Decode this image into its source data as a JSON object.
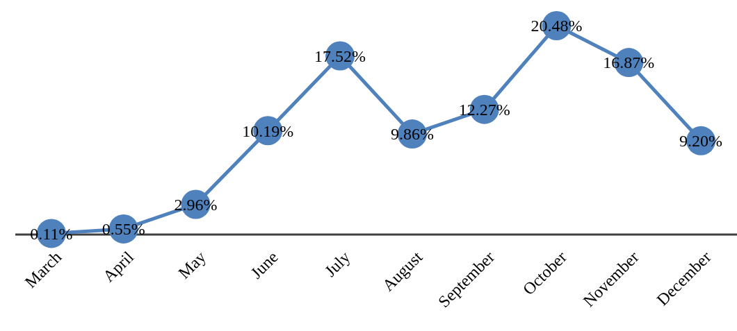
{
  "chart_data": {
    "type": "line",
    "categories": [
      "March",
      "April",
      "May",
      "June",
      "July",
      "August",
      "September",
      "October",
      "November",
      "December"
    ],
    "series": [
      {
        "color": "#4f81bd",
        "values": [
          0.11,
          0.55,
          2.96,
          10.19,
          17.52,
          9.86,
          12.27,
          20.48,
          16.87,
          9.2
        ],
        "value_labels": [
          "0.11%",
          "0.55%",
          "2.96%",
          "10.19%",
          "17.52%",
          "9.86%",
          "12.27%",
          "20.48%",
          "16.87%",
          "9.20%"
        ]
      }
    ],
    "tick_labels": "x",
    "marker": "circle",
    "line_style": "solid"
  }
}
